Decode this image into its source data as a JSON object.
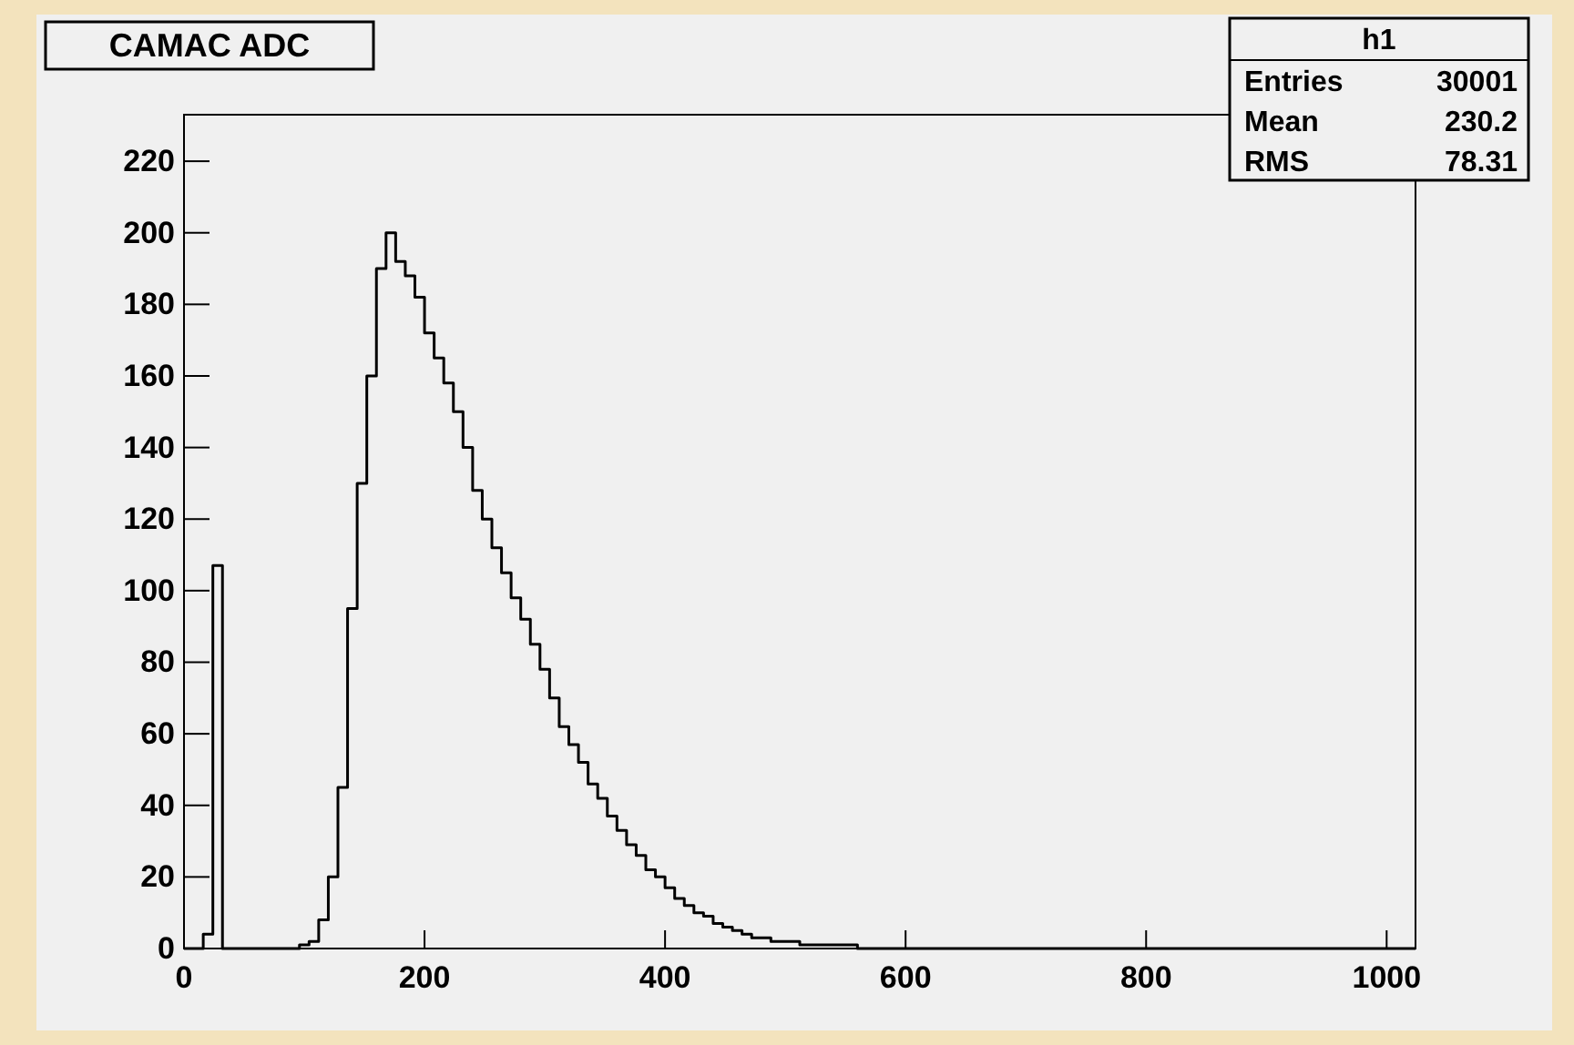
{
  "chart_data": {
    "type": "histogram",
    "title": "CAMAC ADC",
    "bins": [
      0,
      8,
      16,
      24,
      32,
      40,
      48,
      56,
      64,
      72,
      80,
      88,
      96,
      104,
      112,
      120,
      128,
      136,
      144,
      152,
      160,
      168,
      176,
      184,
      192,
      200,
      208,
      216,
      224,
      232,
      240,
      248,
      256,
      264,
      272,
      280,
      288,
      296,
      304,
      312,
      320,
      328,
      336,
      344,
      352,
      360,
      368,
      376,
      384,
      392,
      400,
      408,
      416,
      424,
      432,
      440,
      448,
      456,
      464,
      472,
      480,
      488,
      496,
      504,
      512,
      520,
      528,
      536,
      544,
      552,
      560,
      568,
      576,
      584,
      592,
      600,
      608,
      616,
      624,
      632,
      640,
      648,
      656,
      664,
      672,
      680,
      688,
      696,
      704,
      712,
      720,
      728,
      736,
      744,
      752,
      760,
      768,
      776,
      784,
      792,
      800,
      808,
      816,
      824,
      832,
      840,
      848,
      856,
      864,
      872,
      880,
      888,
      896,
      904,
      912,
      920,
      928,
      936,
      944,
      952,
      960,
      968,
      976,
      984,
      992,
      1000,
      1008,
      1016,
      1024
    ],
    "values": [
      0,
      0,
      4,
      107,
      0,
      0,
      0,
      0,
      0,
      0,
      0,
      0,
      1,
      2,
      8,
      20,
      45,
      95,
      130,
      160,
      190,
      200,
      192,
      188,
      182,
      172,
      165,
      158,
      150,
      140,
      128,
      120,
      112,
      105,
      98,
      92,
      85,
      78,
      70,
      62,
      57,
      52,
      46,
      42,
      37,
      33,
      29,
      26,
      22,
      20,
      17,
      14,
      12,
      10,
      9,
      7,
      6,
      5,
      4,
      3,
      3,
      2,
      2,
      2,
      1,
      1,
      1,
      1,
      1,
      1,
      0,
      0,
      0,
      0,
      0,
      0,
      0,
      0,
      0,
      0,
      0,
      0,
      0,
      0,
      0,
      0,
      0,
      0,
      0,
      0,
      0,
      0,
      0,
      0,
      0,
      0,
      0,
      0,
      0,
      0,
      0,
      0,
      0,
      0,
      0,
      0,
      0,
      0,
      0,
      0,
      0,
      0,
      0,
      0,
      0,
      0,
      0,
      0,
      0,
      0,
      0,
      0,
      0,
      0,
      0,
      0,
      0,
      0
    ],
    "color": "#000000",
    "xlim": [
      0,
      1024
    ],
    "xticks": [
      0,
      200,
      400,
      600,
      800,
      1000
    ],
    "ylim": [
      0,
      233
    ],
    "yticks": [
      0,
      20,
      40,
      60,
      80,
      100,
      120,
      140,
      160,
      180,
      200,
      220
    ],
    "grid": false,
    "annotations": [
      "h1",
      "Entries",
      "30001",
      "Mean",
      "230.2",
      "RMS",
      "78.31"
    ]
  }
}
